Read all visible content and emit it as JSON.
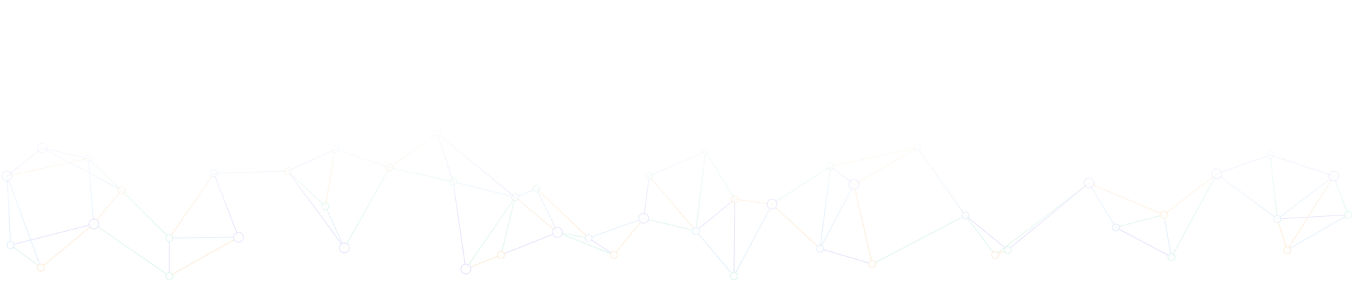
{
  "background": {
    "pattern": "low-poly-network",
    "base_color": "#ffffff",
    "line_colors": [
      "#e4e2fb",
      "#e2effb",
      "#fdecd9",
      "#ddf6ec"
    ]
  }
}
